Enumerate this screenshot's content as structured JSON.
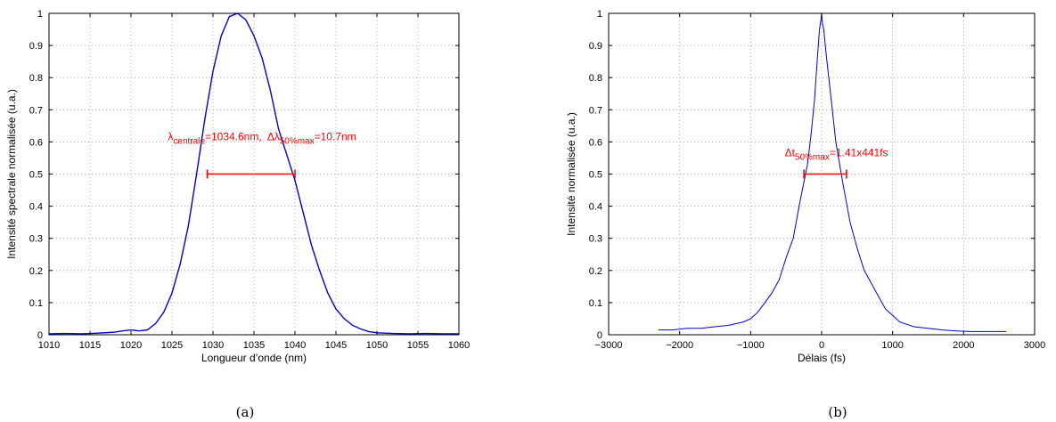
{
  "chart_data": [
    {
      "type": "line",
      "xlabel": "Longueur d’onde (nm)",
      "ylabel": "Intensité spectrale normalisée (u.a.)",
      "xlim": [
        1010,
        1060
      ],
      "ylim": [
        0,
        1
      ],
      "xticks": [
        1010,
        1015,
        1020,
        1025,
        1030,
        1035,
        1040,
        1045,
        1050,
        1055,
        1060
      ],
      "yticks": [
        0,
        0.1,
        0.2,
        0.3,
        0.4,
        0.5,
        0.6,
        0.7,
        0.8,
        0.9,
        1
      ],
      "grid": true,
      "line_color": "#0000cc",
      "annotation_color": "#ff0000",
      "series": [
        {
          "x": [
            1010,
            1012,
            1014,
            1016,
            1018,
            1019,
            1020,
            1021,
            1022,
            1023,
            1024,
            1025,
            1026,
            1027,
            1028,
            1029,
            1030,
            1031,
            1032,
            1033,
            1034,
            1035,
            1036,
            1037,
            1038,
            1039,
            1040,
            1041,
            1042,
            1043,
            1044,
            1045,
            1046,
            1047,
            1048,
            1049,
            1050,
            1052,
            1054,
            1056,
            1058,
            1060
          ],
          "y": [
            0.003,
            0.004,
            0.003,
            0.005,
            0.008,
            0.012,
            0.015,
            0.012,
            0.015,
            0.035,
            0.07,
            0.13,
            0.22,
            0.34,
            0.5,
            0.67,
            0.82,
            0.93,
            0.99,
            1.0,
            0.98,
            0.93,
            0.86,
            0.76,
            0.64,
            0.56,
            0.48,
            0.38,
            0.28,
            0.2,
            0.13,
            0.08,
            0.05,
            0.03,
            0.018,
            0.01,
            0.006,
            0.004,
            0.003,
            0.004,
            0.003,
            0.003
          ]
        }
      ],
      "fwhm_marker": {
        "x1": 1029.3,
        "x2": 1040,
        "y": 0.5
      },
      "annotation": {
        "x": 1024.5,
        "y": 0.605,
        "lambda_main": "λ",
        "lambda_sub": "centrale",
        "lambda_value": "=1034.6nm,",
        "delta_main": "Δλ",
        "delta_sub": "50%max",
        "delta_value": "=10.7nm"
      }
    },
    {
      "type": "line",
      "xlabel": "Délais (fs)",
      "ylabel": "Intensité normalisée (u.a.)",
      "xlim": [
        -3000,
        3000
      ],
      "ylim": [
        0,
        1
      ],
      "xticks": [
        -3000,
        -2000,
        -1000,
        0,
        1000,
        2000,
        3000
      ],
      "xtick_labels": [
        "−3000",
        "−2000",
        "−1000",
        "0",
        "1000",
        "2000",
        "3000"
      ],
      "yticks": [
        0,
        0.1,
        0.2,
        0.3,
        0.4,
        0.5,
        0.6,
        0.7,
        0.8,
        0.9,
        1
      ],
      "grid": true,
      "line_color": "#0000cc",
      "annotation_color": "#ff0000",
      "series": [
        {
          "x": [
            -2300,
            -2100,
            -1900,
            -1700,
            -1500,
            -1300,
            -1100,
            -1000,
            -900,
            -800,
            -700,
            -600,
            -500,
            -400,
            -300,
            -200,
            -150,
            -100,
            -60,
            -30,
            -10,
            0,
            10,
            30,
            60,
            100,
            150,
            200,
            300,
            400,
            500,
            600,
            700,
            800,
            900,
            1000,
            1100,
            1300,
            1500,
            1700,
            1900,
            2100,
            2300,
            2600
          ],
          "y": [
            0.015,
            0.015,
            0.02,
            0.02,
            0.025,
            0.03,
            0.04,
            0.05,
            0.07,
            0.1,
            0.13,
            0.17,
            0.24,
            0.3,
            0.42,
            0.53,
            0.62,
            0.73,
            0.86,
            0.95,
            0.98,
            1.0,
            0.97,
            0.95,
            0.88,
            0.8,
            0.7,
            0.6,
            0.47,
            0.35,
            0.27,
            0.2,
            0.16,
            0.12,
            0.08,
            0.06,
            0.04,
            0.025,
            0.02,
            0.015,
            0.012,
            0.01,
            0.01,
            0.01
          ]
        }
      ],
      "fwhm_marker": {
        "x1": -250,
        "x2": 350,
        "y": 0.5
      },
      "annotation": {
        "x": -520,
        "y": 0.555,
        "delta_main": "Δt",
        "delta_sub": "50%max",
        "delta_value": "=1.41x441fs"
      }
    }
  ],
  "captions": [
    "(a)",
    "(b)"
  ]
}
